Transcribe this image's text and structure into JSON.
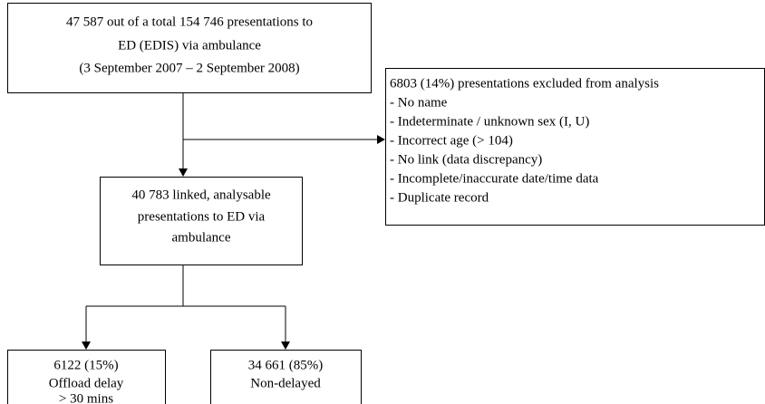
{
  "nodes": [
    {
      "lines": [
        "47 587 out of a total 154 746 presentations to",
        "ED (EDIS) via ambulance",
        "(3 September 2007 – 2 September 2008)"
      ]
    },
    {
      "lines": [
        "6803 (14%) presentations excluded from analysis",
        "- No name",
        "- Indeterminate / unknown sex (I, U)",
        "- Incorrect age (> 104)",
        "- No link (data discrepancy)",
        "- Incomplete/inaccurate date/time data",
        "- Duplicate record"
      ]
    },
    {
      "lines": [
        "40 783 linked, analysable",
        "presentations to ED via",
        "ambulance"
      ]
    },
    {
      "lines": [
        "6122 (15%)",
        "Offload delay",
        "> 30 mins"
      ]
    },
    {
      "lines": [
        "34 661 (85%)",
        "Non-delayed"
      ]
    }
  ]
}
